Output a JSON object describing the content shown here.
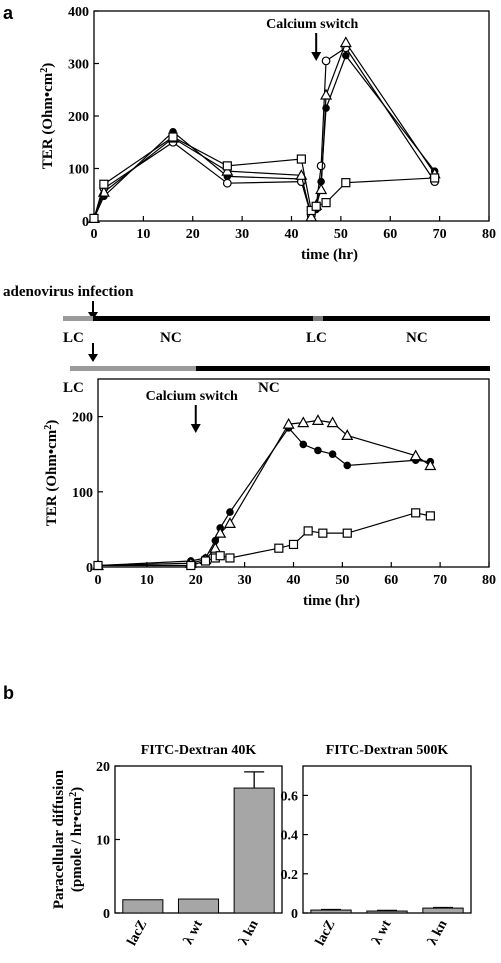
{
  "figure": {
    "panel_a_letter": "a",
    "panel_b_letter": "b",
    "infection_label": "adenovirus infection",
    "timeline1": {
      "left": "LC",
      "mid": "NC",
      "mid2": "LC",
      "right": "NC"
    },
    "timeline2": {
      "left": "LC",
      "right": "NC"
    },
    "colors": {
      "bar_fill": "#a6a6a6",
      "timeline_gray": "#9b9b9b",
      "timeline_black": "#000000"
    }
  },
  "chart_data": [
    {
      "type": "line",
      "panel": "a-top",
      "xlabel": "time (hr)",
      "ylabel": "TER (Ohm•cm²)",
      "xlim": [
        0,
        80
      ],
      "ylim": [
        0,
        400
      ],
      "xticks": [
        "0",
        "10",
        "20",
        "30",
        "40",
        "50",
        "60",
        "70",
        "80"
      ],
      "yticks": [
        "0",
        "100",
        "200",
        "300",
        "400"
      ],
      "annotation": "Calcium switch",
      "annotation_x": 45,
      "series": [
        {
          "marker": "filled-circle",
          "x": [
            0,
            2,
            16,
            27,
            42,
            44,
            45,
            46,
            47,
            51,
            69
          ],
          "y": [
            5,
            47,
            170,
            85,
            80,
            12,
            22,
            75,
            215,
            315,
            95
          ]
        },
        {
          "marker": "open-circle",
          "x": [
            0,
            2,
            16,
            27,
            42,
            44,
            45,
            46,
            47,
            51,
            69
          ],
          "y": [
            5,
            62,
            150,
            72,
            75,
            10,
            28,
            105,
            305,
            330,
            75
          ]
        },
        {
          "marker": "open-triangle",
          "x": [
            0,
            2,
            16,
            27,
            42,
            44,
            45,
            46,
            47,
            51,
            69
          ],
          "y": [
            5,
            55,
            158,
            95,
            87,
            8,
            30,
            60,
            240,
            340,
            90
          ]
        },
        {
          "marker": "open-square",
          "x": [
            0,
            2,
            16,
            27,
            42,
            44,
            45,
            47,
            51,
            69
          ],
          "y": [
            5,
            70,
            160,
            105,
            118,
            20,
            28,
            35,
            73,
            82
          ]
        }
      ]
    },
    {
      "type": "line",
      "panel": "a-bottom",
      "xlabel": "time (hr)",
      "ylabel": "TER (Ohm•cm²)",
      "xlim": [
        0,
        80
      ],
      "ylim": [
        0,
        250
      ],
      "xticks": [
        "0",
        "10",
        "20",
        "30",
        "40",
        "50",
        "60",
        "70",
        "80"
      ],
      "yticks": [
        "0",
        "100",
        "200"
      ],
      "annotation": "Calcium switch",
      "annotation_x": 20,
      "series": [
        {
          "marker": "filled-circle",
          "x": [
            0,
            19,
            22,
            24,
            25,
            27,
            39,
            42,
            45,
            48,
            51,
            65,
            68
          ],
          "y": [
            2,
            8,
            12,
            35,
            52,
            73,
            185,
            163,
            155,
            150,
            135,
            142,
            140
          ]
        },
        {
          "marker": "open-triangle",
          "x": [
            0,
            19,
            22,
            24,
            25,
            27,
            39,
            42,
            45,
            48,
            51,
            65,
            68
          ],
          "y": [
            2,
            5,
            10,
            25,
            45,
            58,
            190,
            192,
            195,
            192,
            175,
            148,
            135
          ]
        },
        {
          "marker": "open-square",
          "x": [
            0,
            19,
            22,
            24,
            25,
            27,
            37,
            40,
            43,
            46,
            51,
            65,
            68
          ],
          "y": [
            2,
            2,
            8,
            12,
            15,
            12,
            25,
            30,
            48,
            45,
            45,
            72,
            68
          ]
        }
      ]
    },
    {
      "type": "bar",
      "panel": "b-left",
      "title": "FITC-Dextran 40K",
      "ylabel": "Paracellular diffusion (pmole / hr•cm²)",
      "ylim": [
        0,
        20
      ],
      "yticks": [
        "0",
        "10",
        "20"
      ],
      "categories": [
        "lacZ",
        "λ wt",
        "λ kn"
      ],
      "values": [
        1.8,
        1.9,
        17.0
      ],
      "errors": [
        0,
        0,
        2.2
      ]
    },
    {
      "type": "bar",
      "panel": "b-right",
      "title": "FITC-Dextran 500K",
      "ylim": [
        0,
        0.75
      ],
      "yticks": [
        "0",
        "0.2",
        "0.4",
        "0.6"
      ],
      "categories": [
        "lacZ",
        "λ wt",
        "λ kn"
      ],
      "values": [
        0.015,
        0.01,
        0.025
      ],
      "errors": [
        0.003,
        0.003,
        0.003
      ]
    }
  ]
}
